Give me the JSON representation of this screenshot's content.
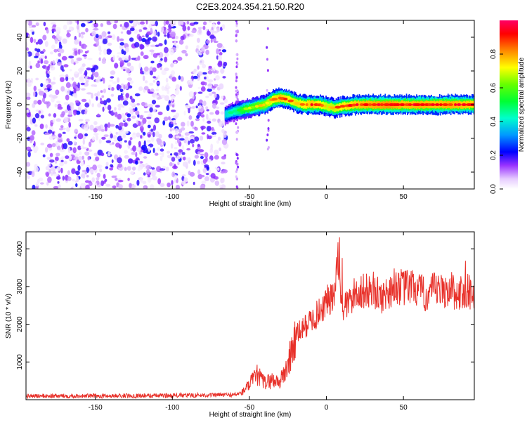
{
  "title": "C2E3.2024.354.21.50.R20",
  "chart_data": [
    {
      "type": "heatmap",
      "title": "C2E3.2024.354.21.50.R20",
      "xlabel": "Height of straight line (km)",
      "ylabel": "Frequency (Hz)",
      "xlim": [
        -195,
        96
      ],
      "ylim": [
        -50,
        50
      ],
      "x_ticks": [
        -150,
        -100,
        -50,
        0,
        50
      ],
      "y_ticks": [
        -40,
        -20,
        0,
        20,
        40
      ],
      "colorbar": {
        "label": "Normalized spectral amplitude",
        "range": [
          0,
          1
        ],
        "ticks": [
          0.0,
          0.2,
          0.4,
          0.6,
          0.8
        ],
        "colors": [
          "#ffffff",
          "#cc99ff",
          "#6600ff",
          "#0000ff",
          "#00ccff",
          "#00ff66",
          "#66ff00",
          "#ffff00",
          "#ff8800",
          "#ff0000",
          "#ff0066"
        ]
      },
      "noise_region": {
        "x": [
          -195,
          -65
        ],
        "y": [
          -50,
          50
        ],
        "amplitude": 0.15
      },
      "signal_ridge": {
        "x": [
          -66,
          -60,
          -55,
          -50,
          -45,
          -40,
          -35,
          -30,
          -25,
          -20,
          -15,
          -10,
          -5,
          0,
          5,
          10,
          20,
          30,
          40,
          50,
          60,
          70,
          80,
          90,
          96
        ],
        "y": [
          -6,
          -4,
          -3,
          -2,
          -1,
          0,
          3,
          4,
          3,
          1,
          0,
          0,
          0,
          -1,
          -2,
          -1,
          0,
          0,
          0,
          0,
          0,
          0,
          0,
          0,
          0
        ],
        "amplitude": [
          0.45,
          0.5,
          0.6,
          0.65,
          0.7,
          0.75,
          0.85,
          0.9,
          0.85,
          0.8,
          0.85,
          0.9,
          0.85,
          0.8,
          0.8,
          0.85,
          0.9,
          0.92,
          0.95,
          0.9,
          0.92,
          0.9,
          0.92,
          0.9,
          0.88
        ]
      }
    },
    {
      "type": "line",
      "xlabel": "Height of straight line (km)",
      "ylabel": "SNR (10 * v/v)",
      "xlim": [
        -195,
        96
      ],
      "ylim": [
        0,
        4450
      ],
      "x_ticks": [
        -150,
        -100,
        -50,
        0,
        50
      ],
      "y_ticks": [
        1000,
        2000,
        3000,
        4000
      ],
      "color": "#e8312a",
      "x": [
        -195,
        -150,
        -100,
        -60,
        -55,
        -50,
        -45,
        -40,
        -35,
        -30,
        -25,
        -20,
        -15,
        -10,
        -5,
        0,
        5,
        8,
        10,
        15,
        20,
        25,
        30,
        35,
        40,
        45,
        50,
        55,
        60,
        65,
        70,
        75,
        80,
        85,
        90,
        96
      ],
      "y": [
        100,
        100,
        110,
        130,
        180,
        400,
        650,
        450,
        520,
        480,
        900,
        1700,
        1900,
        2100,
        2300,
        2600,
        2700,
        3800,
        2400,
        2600,
        2900,
        2850,
        2950,
        2700,
        2850,
        3050,
        2950,
        3000,
        2900,
        2750,
        2900,
        2850,
        2950,
        2800,
        2850,
        2900
      ]
    }
  ]
}
